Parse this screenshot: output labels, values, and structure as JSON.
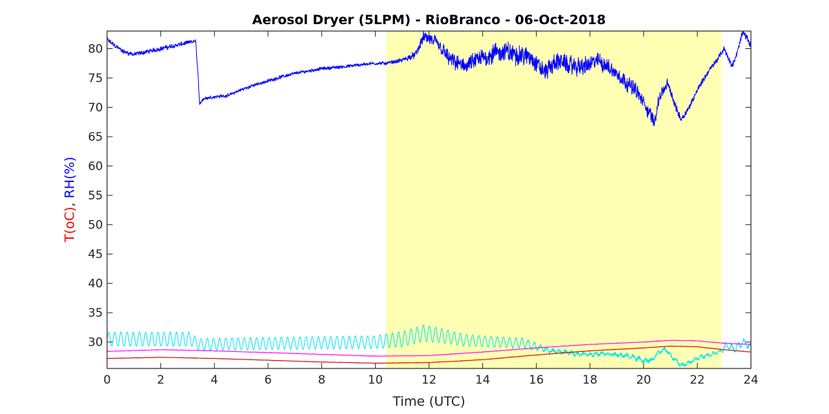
{
  "chart_data": {
    "type": "line",
    "title": "Aerosol Dryer (5LPM) - RioBranco - 06-Oct-2018",
    "xlabel": "Time (UTC)",
    "ylabel_parts": [
      {
        "text": "T(oC)",
        "color": "#ff0000"
      },
      {
        "text": ", ",
        "color": "#262626"
      },
      {
        "text": "RH(%)",
        "color": "#0000ff"
      }
    ],
    "xlim": [
      0,
      24
    ],
    "ylim": [
      25.5,
      83
    ],
    "xticks": [
      "0",
      "2",
      "4",
      "6",
      "8",
      "10",
      "12",
      "14",
      "16",
      "18",
      "20",
      "22",
      "24"
    ],
    "yticks": [
      "30",
      "35",
      "40",
      "45",
      "50",
      "55",
      "60",
      "65",
      "70",
      "75",
      "80"
    ],
    "grid": false,
    "daylight_span": {
      "x_start": 10.4,
      "x_end": 22.9,
      "color": "#ffffb3"
    },
    "series": [
      {
        "color": "#0000ff",
        "x": [
          0,
          0.3,
          0.6,
          1.0,
          1.5,
          2.0,
          2.5,
          3.0,
          3.3,
          3.4,
          3.45,
          3.5,
          3.6,
          4.0,
          4.5,
          5.0,
          5.5,
          6.0,
          6.5,
          7.0,
          7.5,
          8.0,
          8.5,
          9.0,
          9.5,
          10.0,
          10.4,
          11.0,
          11.5,
          11.8,
          12.3,
          12.8,
          13.3,
          13.8,
          14.3,
          14.8,
          15.3,
          15.8,
          16.3,
          16.8,
          17.3,
          17.8,
          18.3,
          18.8,
          19.3,
          19.7,
          20.1,
          20.4,
          20.6,
          20.9,
          21.2,
          21.4,
          21.7,
          22.0,
          22.4,
          22.8,
          23.0,
          23.3,
          23.5,
          23.7,
          24
        ],
        "y": [
          81.5,
          80.5,
          79.5,
          79.0,
          79.5,
          80.0,
          80.5,
          81.0,
          81.3,
          75.0,
          70.0,
          71.0,
          71.5,
          71.8,
          72.0,
          73.0,
          73.8,
          74.5,
          75.2,
          75.8,
          76.2,
          76.6,
          76.8,
          77.0,
          77.3,
          77.5,
          77.5,
          78.0,
          79.0,
          82.0,
          81.0,
          78.0,
          77.0,
          78.0,
          79.0,
          79.5,
          79.0,
          78.5,
          76.0,
          78.0,
          77.0,
          77.0,
          78.0,
          76.5,
          74.5,
          73.0,
          70.0,
          67.5,
          72.0,
          74.0,
          70.0,
          68.0,
          70.0,
          73.0,
          76.0,
          78.5,
          80.0,
          77.0,
          79.5,
          83.0,
          80.5
        ],
        "noise": [
          0.5,
          0.4,
          0.4,
          0.4,
          0.4,
          0.4,
          0.4,
          0.4,
          0.3,
          0.3,
          0.5,
          0.3,
          0.3,
          0.3,
          0.3,
          0.3,
          0.3,
          0.3,
          0.3,
          0.3,
          0.3,
          0.3,
          0.3,
          0.3,
          0.3,
          0.3,
          0.3,
          0.4,
          0.6,
          1.0,
          1.2,
          1.4,
          1.4,
          1.6,
          1.8,
          1.8,
          1.8,
          1.6,
          1.6,
          1.6,
          1.6,
          1.6,
          1.4,
          1.4,
          1.4,
          1.3,
          1.3,
          1.2,
          1.0,
          0.9,
          0.8,
          0.6,
          0.5,
          0.5,
          0.5,
          0.5,
          0.5,
          0.5,
          0.5,
          0.6,
          0.5
        ]
      },
      {
        "color": "#00e5ee",
        "x": [
          0,
          3.2,
          3.3,
          3.5,
          10.0,
          11.0,
          11.8,
          12.6,
          13.3,
          14.5,
          15.5,
          16.0,
          16.5,
          17.0,
          17.5,
          18.0,
          18.5,
          19.0,
          19.5,
          20.0,
          20.3,
          20.5,
          20.8,
          21.1,
          21.4,
          21.7,
          22.0,
          22.5,
          22.9,
          23.1,
          23.4,
          23.7,
          24
        ],
        "y": [
          30.5,
          30.5,
          29.8,
          29.6,
          30.0,
          30.5,
          31.5,
          31.0,
          30.3,
          30.0,
          29.8,
          29.2,
          28.5,
          28.3,
          28.0,
          27.9,
          28.1,
          27.8,
          27.6,
          26.8,
          26.9,
          28.0,
          28.8,
          27.3,
          26.0,
          26.5,
          27.3,
          27.8,
          28.5,
          29.5,
          28.8,
          30.0,
          29.2
        ],
        "osc_period": [
          0.23,
          0.23,
          0.23,
          0.23,
          0.23,
          0.23,
          0.23,
          0.23,
          0.23,
          0.23,
          0.23,
          0.23,
          0.23,
          0.23,
          0.23,
          0.23,
          0.23,
          0.23,
          0.23,
          0.23,
          0.23,
          0.23,
          0.23,
          0.23,
          0.23,
          0.23,
          0.23,
          0.23,
          0.23,
          0.23,
          0.23,
          0.23,
          0.23
        ],
        "osc_amp": [
          1.2,
          1.2,
          1.0,
          1.0,
          1.1,
          1.3,
          1.4,
          1.2,
          1.0,
          0.9,
          0.8,
          0.5,
          0.3,
          0.2,
          0.2,
          0.2,
          0.2,
          0.2,
          0.2,
          0.2,
          0.2,
          0.2,
          0.2,
          0.2,
          0.2,
          0.2,
          0.2,
          0.2,
          0.3,
          0.5,
          0.5,
          0.5,
          0.4
        ],
        "noise": [
          0.05,
          0.05,
          0.05,
          0.05,
          0.05,
          0.05,
          0.05,
          0.05,
          0.05,
          0.1,
          0.2,
          0.3,
          0.35,
          0.35,
          0.35,
          0.35,
          0.35,
          0.35,
          0.35,
          0.35,
          0.35,
          0.35,
          0.3,
          0.3,
          0.3,
          0.3,
          0.3,
          0.3,
          0.3,
          0.3,
          0.3,
          0.3,
          0.3
        ]
      },
      {
        "color": "#ff00ff",
        "x": [
          0,
          2.0,
          4.0,
          6.0,
          8.0,
          10.0,
          12.0,
          14.0,
          16.0,
          18.0,
          20.0,
          21.0,
          22.0,
          23.0,
          24
        ],
        "y": [
          28.4,
          28.7,
          28.5,
          28.2,
          27.9,
          27.6,
          27.7,
          28.3,
          29.0,
          29.6,
          30.0,
          30.3,
          30.2,
          29.8,
          29.6
        ],
        "noise": [
          0.05,
          0.05,
          0.05,
          0.05,
          0.05,
          0.05,
          0.05,
          0.05,
          0.05,
          0.05,
          0.05,
          0.05,
          0.05,
          0.05,
          0.05
        ]
      },
      {
        "color": "#cc0000",
        "x": [
          0,
          2.0,
          4.0,
          6.0,
          8.0,
          10.0,
          12.0,
          14.0,
          16.0,
          18.0,
          20.0,
          21.0,
          22.0,
          23.0,
          24
        ],
        "y": [
          27.2,
          27.4,
          27.2,
          26.9,
          26.6,
          26.4,
          26.5,
          27.0,
          27.8,
          28.5,
          29.0,
          29.3,
          29.2,
          28.7,
          28.3
        ],
        "noise": [
          0.04,
          0.04,
          0.04,
          0.04,
          0.04,
          0.04,
          0.04,
          0.04,
          0.04,
          0.04,
          0.04,
          0.04,
          0.04,
          0.04,
          0.04
        ]
      }
    ]
  }
}
